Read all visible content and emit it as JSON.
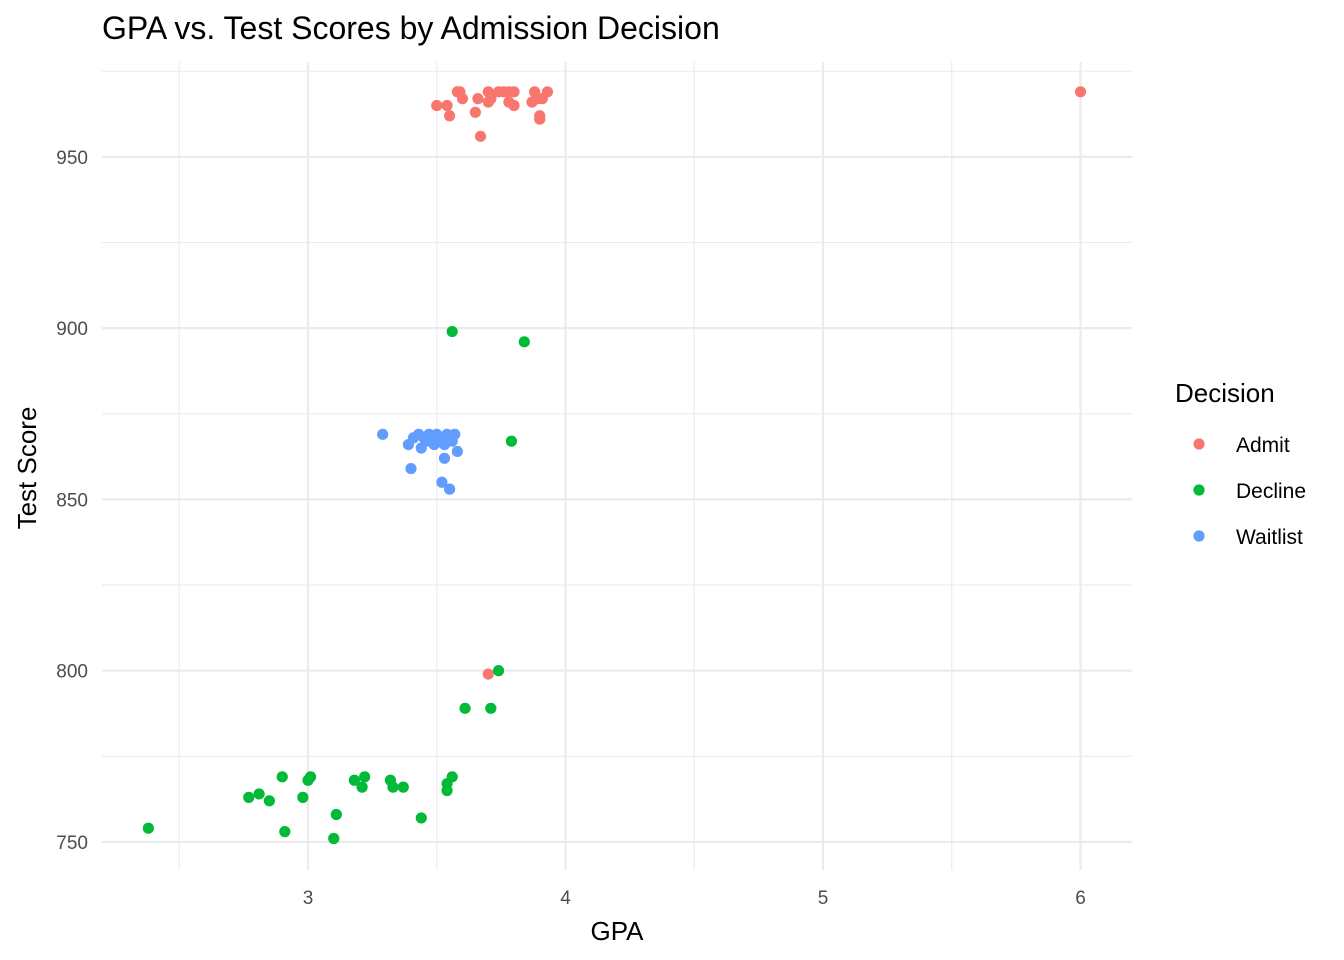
{
  "chart_data": {
    "type": "scatter",
    "title": "GPA vs. Test Scores by Admission Decision",
    "xlabel": "GPA",
    "ylabel": "Test Score",
    "xlim": [
      2.2,
      6.2
    ],
    "ylim": [
      741.8,
      977.7
    ],
    "x_ticks": [
      3,
      4,
      5,
      6
    ],
    "x_minor_ticks": [
      2.5,
      3.5,
      4.5,
      5.5
    ],
    "y_ticks": [
      750,
      800,
      850,
      900,
      950
    ],
    "y_minor_ticks": [
      775,
      825,
      875,
      925,
      975
    ],
    "grid": true,
    "legend": {
      "title": "Decision",
      "position": "right"
    },
    "series": [
      {
        "name": "Admit",
        "color": "#F8766D",
        "points": [
          [
            3.5,
            965
          ],
          [
            3.54,
            965
          ],
          [
            3.55,
            962
          ],
          [
            3.58,
            969
          ],
          [
            3.59,
            969
          ],
          [
            3.6,
            967
          ],
          [
            3.65,
            963
          ],
          [
            3.66,
            967
          ],
          [
            3.67,
            956
          ],
          [
            3.7,
            969
          ],
          [
            3.7,
            966
          ],
          [
            3.71,
            967
          ],
          [
            3.74,
            969
          ],
          [
            3.76,
            969
          ],
          [
            3.78,
            969
          ],
          [
            3.78,
            966
          ],
          [
            3.8,
            969
          ],
          [
            3.8,
            965
          ],
          [
            3.87,
            966
          ],
          [
            3.88,
            969
          ],
          [
            3.89,
            967
          ],
          [
            3.9,
            962
          ],
          [
            3.9,
            961
          ],
          [
            3.91,
            967
          ],
          [
            3.93,
            969
          ],
          [
            6.0,
            969
          ],
          [
            3.7,
            799
          ]
        ]
      },
      {
        "name": "Decline",
        "color": "#00BA38",
        "points": [
          [
            3.56,
            899
          ],
          [
            3.84,
            896
          ],
          [
            3.79,
            867
          ],
          [
            3.74,
            800
          ],
          [
            3.61,
            789
          ],
          [
            3.71,
            789
          ],
          [
            2.38,
            754
          ],
          [
            2.77,
            763
          ],
          [
            2.81,
            764
          ],
          [
            2.85,
            762
          ],
          [
            2.9,
            769
          ],
          [
            2.91,
            753
          ],
          [
            2.98,
            763
          ],
          [
            3.0,
            768
          ],
          [
            3.01,
            769
          ],
          [
            3.1,
            751
          ],
          [
            3.11,
            758
          ],
          [
            3.18,
            768
          ],
          [
            3.21,
            766
          ],
          [
            3.22,
            769
          ],
          [
            3.32,
            768
          ],
          [
            3.33,
            766
          ],
          [
            3.37,
            766
          ],
          [
            3.44,
            757
          ],
          [
            3.54,
            767
          ],
          [
            3.54,
            765
          ],
          [
            3.56,
            769
          ]
        ]
      },
      {
        "name": "Waitlist",
        "color": "#619CFF",
        "points": [
          [
            3.29,
            869
          ],
          [
            3.39,
            866
          ],
          [
            3.4,
            859
          ],
          [
            3.41,
            868
          ],
          [
            3.43,
            869
          ],
          [
            3.44,
            865
          ],
          [
            3.45,
            868
          ],
          [
            3.46,
            867
          ],
          [
            3.47,
            869
          ],
          [
            3.48,
            867
          ],
          [
            3.49,
            866
          ],
          [
            3.5,
            869
          ],
          [
            3.51,
            868
          ],
          [
            3.52,
            867
          ],
          [
            3.52,
            855
          ],
          [
            3.53,
            862
          ],
          [
            3.53,
            866
          ],
          [
            3.54,
            869
          ],
          [
            3.55,
            868
          ],
          [
            3.55,
            853
          ],
          [
            3.56,
            867
          ],
          [
            3.57,
            869
          ],
          [
            3.58,
            864
          ]
        ]
      }
    ]
  }
}
